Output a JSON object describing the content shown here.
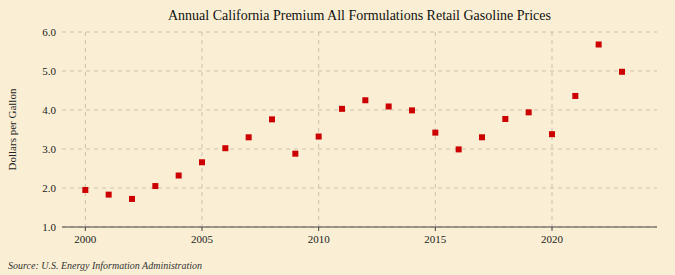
{
  "chart_data": {
    "type": "scatter",
    "title": "Annual California Premium All Formulations Retail Gasoline Prices",
    "y_label": "Dollars per Gallon",
    "annotations": [
      "Source: U.S. Energy Information Administration"
    ],
    "x": [
      2000,
      2001,
      2002,
      2003,
      2004,
      2005,
      2006,
      2007,
      2008,
      2009,
      2010,
      2011,
      2012,
      2013,
      2014,
      2015,
      2016,
      2017,
      2018,
      2019,
      2020,
      2021,
      2022,
      2023
    ],
    "values": [
      1.95,
      1.83,
      1.72,
      2.05,
      2.32,
      2.66,
      3.02,
      3.3,
      3.76,
      2.88,
      3.32,
      4.03,
      4.25,
      4.09,
      3.99,
      3.42,
      2.99,
      3.3,
      3.77,
      3.94,
      3.38,
      4.36,
      5.68,
      4.98
    ],
    "color": "#cc0000",
    "marker": "square",
    "xlim": [
      1999.0,
      2024.5
    ],
    "xticks": [
      2000,
      2005,
      2010,
      2015,
      2020
    ],
    "ylim": [
      1.0,
      6.0
    ],
    "yticks": [
      {
        "value": 1.0,
        "label": "1.0"
      },
      {
        "value": 2.0,
        "label": "2.0"
      },
      {
        "value": 3.0,
        "label": "3.0"
      },
      {
        "value": 4.0,
        "label": "4.0"
      },
      {
        "value": 5.0,
        "label": "5.0"
      },
      {
        "value": 6.0,
        "label": "6.0"
      }
    ],
    "grid": true
  }
}
